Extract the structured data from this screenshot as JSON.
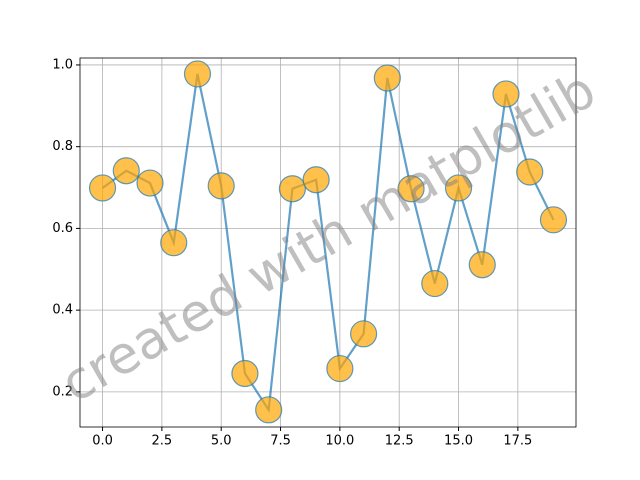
{
  "chart_data": {
    "type": "line",
    "x": [
      0,
      1,
      2,
      3,
      4,
      5,
      6,
      7,
      8,
      9,
      10,
      11,
      12,
      13,
      14,
      15,
      16,
      17,
      18,
      19
    ],
    "series": [
      {
        "color": "#1f77b4",
        "marker_color": "#ffa500",
        "values": [
          0.699,
          0.741,
          0.711,
          0.565,
          0.978,
          0.704,
          0.245,
          0.156,
          0.697,
          0.719,
          0.257,
          0.342,
          0.968,
          0.697,
          0.465,
          0.699,
          0.511,
          0.929,
          0.738,
          0.621
        ]
      }
    ],
    "xlim": [
      -0.95,
      19.95
    ],
    "ylim": [
      0.114,
      1.017
    ],
    "xticks": [
      {
        "value": 0,
        "label": "0.0"
      },
      {
        "value": 2.5,
        "label": "2.5"
      },
      {
        "value": 5,
        "label": "5.0"
      },
      {
        "value": 7.5,
        "label": "7.5"
      },
      {
        "value": 10,
        "label": "10.0"
      },
      {
        "value": 12.5,
        "label": "12.5"
      },
      {
        "value": 15,
        "label": "15.0"
      },
      {
        "value": 17.5,
        "label": "17.5"
      }
    ],
    "yticks": [
      0.2,
      0.4,
      0.6,
      0.8,
      {
        "value": 1,
        "label": "1.0"
      }
    ],
    "grid": true,
    "watermark": "created with matplotlib"
  }
}
